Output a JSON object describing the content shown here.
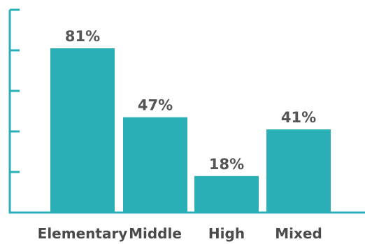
{
  "chart_data": {
    "type": "bar",
    "categories": [
      "Elementary",
      "Middle",
      "High",
      "Mixed"
    ],
    "values": [
      81,
      47,
      18,
      41
    ],
    "data_labels": [
      "81%",
      "47%",
      "18%",
      "41%"
    ],
    "title": "",
    "xlabel": "",
    "ylabel": "",
    "ylim": [
      0,
      100
    ],
    "grid": false,
    "legend": "none",
    "colors": {
      "bar": "#2bafb6",
      "axis": "#2bafb6",
      "data_label": "#555555",
      "category_label": "#4a4a4a"
    }
  }
}
